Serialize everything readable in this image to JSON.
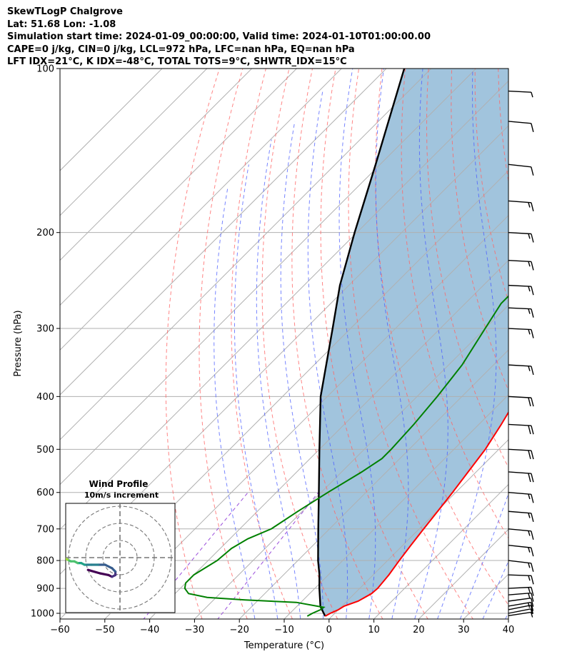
{
  "header": {
    "lines": [
      "SkewTLogP Chalgrove",
      "Lat: 51.68   Lon: -1.08",
      "Simulation start time: 2024-01-09_00:00:00, Valid time: 2024-01-10T01:00:00.00",
      "CAPE=0 j/kg, CIN=0 j/kg, LCL=972 hPa, LFC=nan hPa, EQ=nan hPa",
      "LFT IDX=21°C, K IDX=-48°C, TOTAL TOTS=9°C, SHWTR_IDX=15°C"
    ]
  },
  "chart_data": {
    "type": "skew-t",
    "xlabel": "Temperature (°C)",
    "ylabel": "Pressure (hPa)",
    "xlim": [
      -60,
      40
    ],
    "ylim": [
      1050,
      100
    ],
    "x_ticks": [
      -60,
      -50,
      -40,
      -30,
      -20,
      -10,
      0,
      10,
      20,
      30,
      40
    ],
    "x_tick_labels": [
      "−60",
      "−50",
      "−40",
      "−30",
      "−20",
      "−10",
      "0",
      "10",
      "20",
      "30",
      "40"
    ],
    "y_ticks": [
      1000,
      900,
      800,
      700,
      600,
      500,
      400,
      300,
      200,
      100
    ],
    "y_tick_labels": [
      "1000",
      "900",
      "800",
      "700",
      "600",
      "500",
      "400",
      "300",
      "200",
      "100"
    ],
    "grid": true,
    "colors": {
      "temperature": "#ff0000",
      "dewpoint": "#008000",
      "parcel": "#000000",
      "cin_fill": "#a1c4dd",
      "dry_adiabat": "#ff6666",
      "moist_adiabat": "#4a5cff",
      "mixing_ratio": "#9a4ddb",
      "isotherm": "#aaaaaa"
    },
    "temperature_profile": [
      [
        1012,
        -1.5
      ],
      [
        1000,
        -1.0
      ],
      [
        985,
        0.0
      ],
      [
        970,
        0.5
      ],
      [
        950,
        2.5
      ],
      [
        920,
        3.8
      ],
      [
        900,
        4.0
      ],
      [
        850,
        3.5
      ],
      [
        800,
        2.6
      ],
      [
        750,
        1.8
      ],
      [
        700,
        1.0
      ],
      [
        650,
        0.2
      ],
      [
        600,
        -0.7
      ],
      [
        550,
        -1.8
      ],
      [
        500,
        -3.0
      ],
      [
        450,
        -5.0
      ],
      [
        400,
        -7.5
      ],
      [
        350,
        -10.5
      ],
      [
        320,
        -12.5
      ],
      [
        300,
        -13.5
      ],
      [
        270,
        -13.5
      ],
      [
        250,
        -12.0
      ],
      [
        230,
        -9.0
      ],
      [
        210,
        -6.0
      ],
      [
        190,
        -3.5
      ],
      [
        170,
        -1.5
      ],
      [
        150,
        1.0
      ],
      [
        135,
        5.0
      ],
      [
        120,
        7.5
      ],
      [
        110,
        10.0
      ],
      [
        100,
        10.5
      ]
    ],
    "dewpoint_profile": [
      [
        1012,
        -5.5
      ],
      [
        1000,
        -5.0
      ],
      [
        985,
        -4.0
      ],
      [
        975,
        -3.8
      ],
      [
        955,
        -11.0
      ],
      [
        945,
        -23.0
      ],
      [
        935,
        -32.0
      ],
      [
        920,
        -37.0
      ],
      [
        900,
        -39.0
      ],
      [
        880,
        -40.0
      ],
      [
        850,
        -40.0
      ],
      [
        800,
        -38.0
      ],
      [
        760,
        -37.5
      ],
      [
        730,
        -36.0
      ],
      [
        700,
        -33.0
      ],
      [
        650,
        -31.0
      ],
      [
        600,
        -28.5
      ],
      [
        550,
        -25.5
      ],
      [
        520,
        -24.0
      ],
      [
        500,
        -24.0
      ],
      [
        450,
        -24.5
      ],
      [
        400,
        -25.5
      ],
      [
        350,
        -27.0
      ],
      [
        300,
        -30.0
      ],
      [
        270,
        -32.0
      ],
      [
        250,
        -32.0
      ],
      [
        220,
        -31.0
      ],
      [
        200,
        -30.0
      ],
      [
        180,
        -30.0
      ],
      [
        160,
        -31.5
      ],
      [
        150,
        -31.5
      ],
      [
        140,
        -30.0
      ],
      [
        130,
        -27.5
      ],
      [
        120,
        -24.5
      ],
      [
        110,
        -21.5
      ],
      [
        100,
        -19.0
      ]
    ],
    "parcel_profile": [
      [
        1012,
        -1.5
      ],
      [
        972,
        -4.7
      ],
      [
        900,
        -9.0
      ],
      [
        850,
        -12.0
      ],
      [
        800,
        -15.5
      ],
      [
        700,
        -22.5
      ],
      [
        600,
        -30.5
      ],
      [
        500,
        -40.0
      ],
      [
        400,
        -51.5
      ],
      [
        300,
        -64.0
      ],
      [
        250,
        -72.0
      ],
      [
        200,
        -80.5
      ],
      [
        150,
        -91.0
      ],
      [
        100,
        -106.0
      ]
    ],
    "hodograph": {
      "title": "Wind Profile",
      "subtitle": "10m/s increment",
      "rings": [
        10,
        20,
        30
      ],
      "u": [
        -2,
        5,
        10,
        12,
        14,
        14,
        12,
        8,
        4,
        0,
        -4,
        -6,
        -8,
        -10,
        -12,
        -14,
        -16,
        -18,
        -20,
        -22
      ],
      "v": [
        -3,
        -5,
        -6,
        -7,
        -6,
        -4,
        -2,
        0,
        0,
        0,
        0,
        1,
        1,
        2,
        2,
        3,
        4,
        4,
        5,
        5
      ]
    },
    "wind_barbs": [
      {
        "p": 1010,
        "u": -3,
        "v": 2
      },
      {
        "p": 1000,
        "u": -5,
        "v": 5
      },
      {
        "p": 985,
        "u": -8,
        "v": 8
      },
      {
        "p": 970,
        "u": -10,
        "v": 8
      },
      {
        "p": 950,
        "u": -10,
        "v": 6
      },
      {
        "p": 925,
        "u": -12,
        "v": 4
      },
      {
        "p": 900,
        "u": -15,
        "v": 3
      },
      {
        "p": 850,
        "u": -14,
        "v": -2
      },
      {
        "p": 800,
        "u": -12,
        "v": -6
      },
      {
        "p": 750,
        "u": -13,
        "v": -6
      },
      {
        "p": 700,
        "u": -15,
        "v": -6
      },
      {
        "p": 650,
        "u": -15,
        "v": -5
      },
      {
        "p": 600,
        "u": -15,
        "v": -5
      },
      {
        "p": 550,
        "u": -17,
        "v": -5
      },
      {
        "p": 500,
        "u": -18,
        "v": -4
      },
      {
        "p": 450,
        "u": -18,
        "v": -4
      },
      {
        "p": 400,
        "u": -18,
        "v": -4
      },
      {
        "p": 350,
        "u": -17,
        "v": -4
      },
      {
        "p": 300,
        "u": -16,
        "v": -3
      },
      {
        "p": 275,
        "u": -16,
        "v": -3
      },
      {
        "p": 250,
        "u": -15,
        "v": -3
      },
      {
        "p": 225,
        "u": -14,
        "v": -3
      },
      {
        "p": 200,
        "u": -13,
        "v": -3
      },
      {
        "p": 175,
        "u": -13,
        "v": -4
      },
      {
        "p": 150,
        "u": -11,
        "v": -5
      },
      {
        "p": 125,
        "u": -8,
        "v": -3
      },
      {
        "p": 110,
        "u": -5,
        "v": -1
      }
    ]
  }
}
